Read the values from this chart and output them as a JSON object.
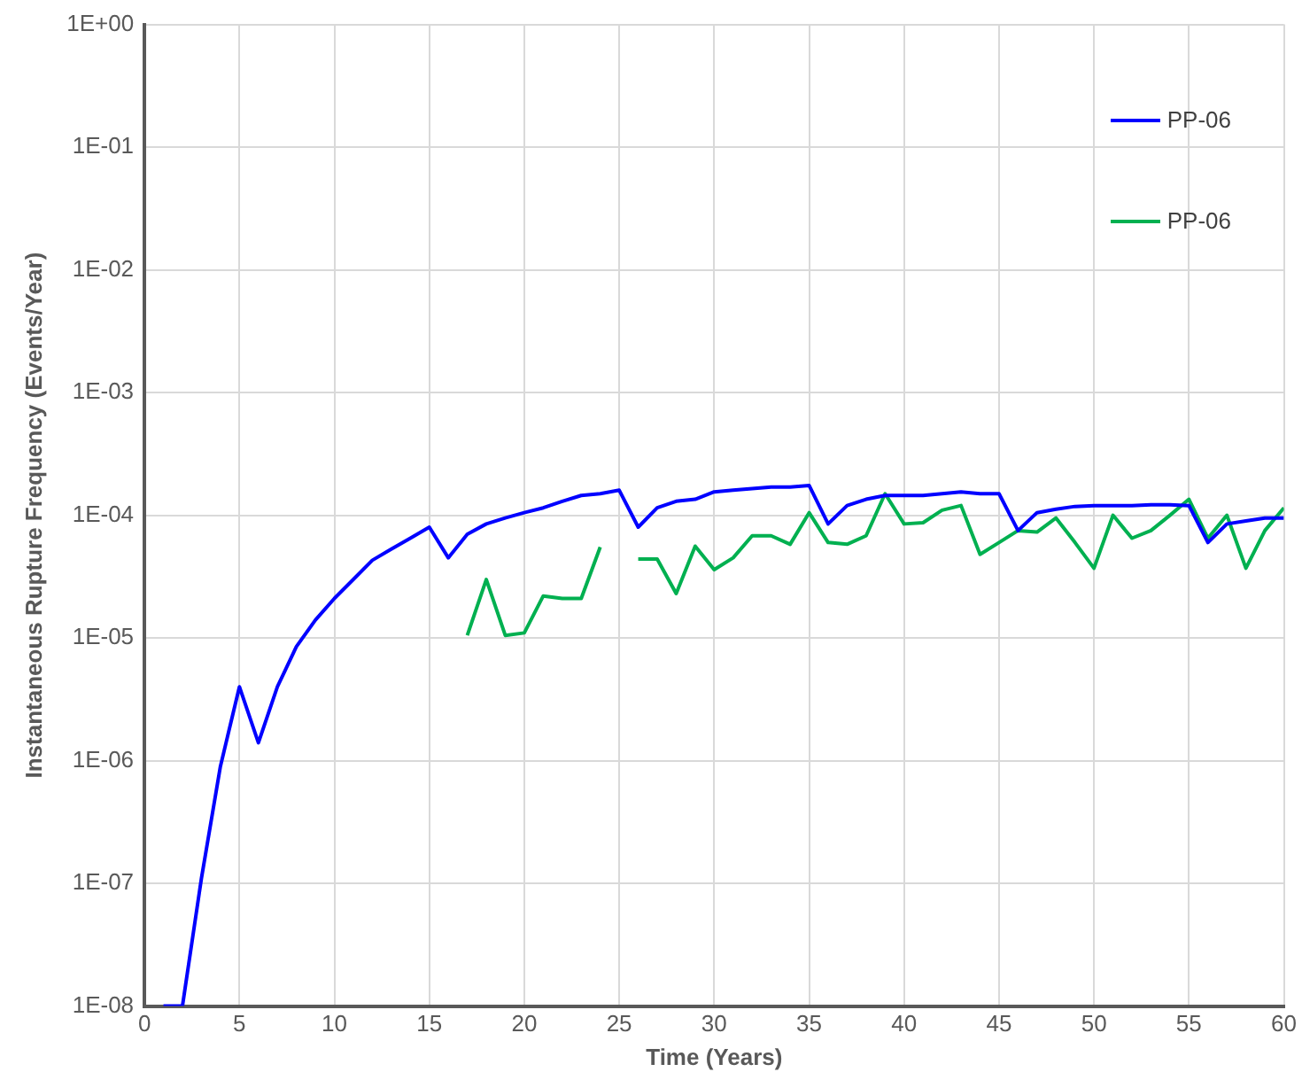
{
  "chart_data": {
    "type": "line",
    "xlabel": "Time (Years)",
    "ylabel": "Instantaneous Rupture Frequency (Events/Year)",
    "xlim": [
      0,
      60
    ],
    "xticks": [
      0,
      5,
      10,
      15,
      20,
      25,
      30,
      35,
      40,
      45,
      50,
      55,
      60
    ],
    "ylim": [
      1e-08,
      1
    ],
    "yticks": [
      {
        "value": 1e-08,
        "label": "1E-08"
      },
      {
        "value": 1e-07,
        "label": "1E-07"
      },
      {
        "value": 1e-06,
        "label": "1E-06"
      },
      {
        "value": 1e-05,
        "label": "1E-05"
      },
      {
        "value": 0.0001,
        "label": "1E-04"
      },
      {
        "value": 0.001,
        "label": "1E-03"
      },
      {
        "value": 0.01,
        "label": "1E-02"
      },
      {
        "value": 0.1,
        "label": "1E-01"
      },
      {
        "value": 1,
        "label": "1E+00"
      }
    ],
    "log": "y",
    "grid": true,
    "legend": "top right",
    "marker": "none",
    "line_style": "solid",
    "series": [
      {
        "name": "PP-06",
        "color": "#0000ff",
        "x": [
          1,
          2,
          3,
          4,
          5,
          6,
          7,
          8,
          9,
          10,
          11,
          12,
          13,
          14,
          15,
          16,
          17,
          18,
          19,
          20,
          21,
          22,
          23,
          24,
          25,
          26,
          27,
          28,
          29,
          30,
          31,
          32,
          33,
          34,
          35,
          36,
          37,
          38,
          39,
          40,
          41,
          42,
          43,
          44,
          45,
          46,
          47,
          48,
          49,
          50,
          51,
          52,
          53,
          54,
          55,
          56,
          57,
          58,
          59,
          60
        ],
        "values": [
          1e-08,
          1e-08,
          1.1e-07,
          9e-07,
          4e-06,
          1.4e-06,
          4e-06,
          8.5e-06,
          1.4e-05,
          2.1e-05,
          3e-05,
          4.3e-05,
          5.3e-05,
          6.5e-05,
          8e-05,
          4.5e-05,
          7e-05,
          8.5e-05,
          9.5e-05,
          0.000105,
          0.000115,
          0.00013,
          0.000145,
          0.00015,
          0.00016,
          8e-05,
          0.000115,
          0.00013,
          0.000135,
          0.000155,
          0.00016,
          0.000165,
          0.00017,
          0.00017,
          0.000175,
          8.5e-05,
          0.00012,
          0.000135,
          0.000145,
          0.000145,
          0.000145,
          0.00015,
          0.000155,
          0.00015,
          0.00015,
          7.5e-05,
          0.000105,
          0.000112,
          0.000118,
          0.00012,
          0.00012,
          0.00012,
          0.000122,
          0.000122,
          0.00012,
          6e-05,
          8.5e-05,
          9e-05,
          9.5e-05,
          9.5e-05
        ]
      },
      {
        "name": "PP-06",
        "color": "#00b050",
        "x": [
          17,
          18,
          19,
          20,
          21,
          22,
          23,
          24,
          25,
          26,
          27,
          28,
          29,
          30,
          31,
          32,
          33,
          34,
          35,
          36,
          37,
          38,
          39,
          40,
          41,
          42,
          43,
          44,
          45,
          46,
          47,
          48,
          49,
          50,
          51,
          52,
          53,
          54,
          55,
          56,
          57,
          58,
          59,
          60
        ],
        "values": [
          1.05e-05,
          3e-05,
          1.05e-05,
          1.1e-05,
          2.2e-05,
          2.1e-05,
          2.1e-05,
          5.5e-05,
          null,
          4.4e-05,
          4.4e-05,
          2.3e-05,
          5.6e-05,
          3.6e-05,
          4.5e-05,
          6.8e-05,
          6.8e-05,
          5.8e-05,
          0.000105,
          6e-05,
          5.8e-05,
          6.8e-05,
          0.00015,
          8.5e-05,
          8.7e-05,
          0.00011,
          0.00012,
          4.8e-05,
          6e-05,
          7.5e-05,
          7.3e-05,
          9.5e-05,
          6e-05,
          3.7e-05,
          0.0001,
          6.5e-05,
          7.5e-05,
          0.0001,
          0.000135,
          6.5e-05,
          0.0001,
          3.7e-05,
          7.5e-05,
          0.000115
        ]
      }
    ]
  }
}
